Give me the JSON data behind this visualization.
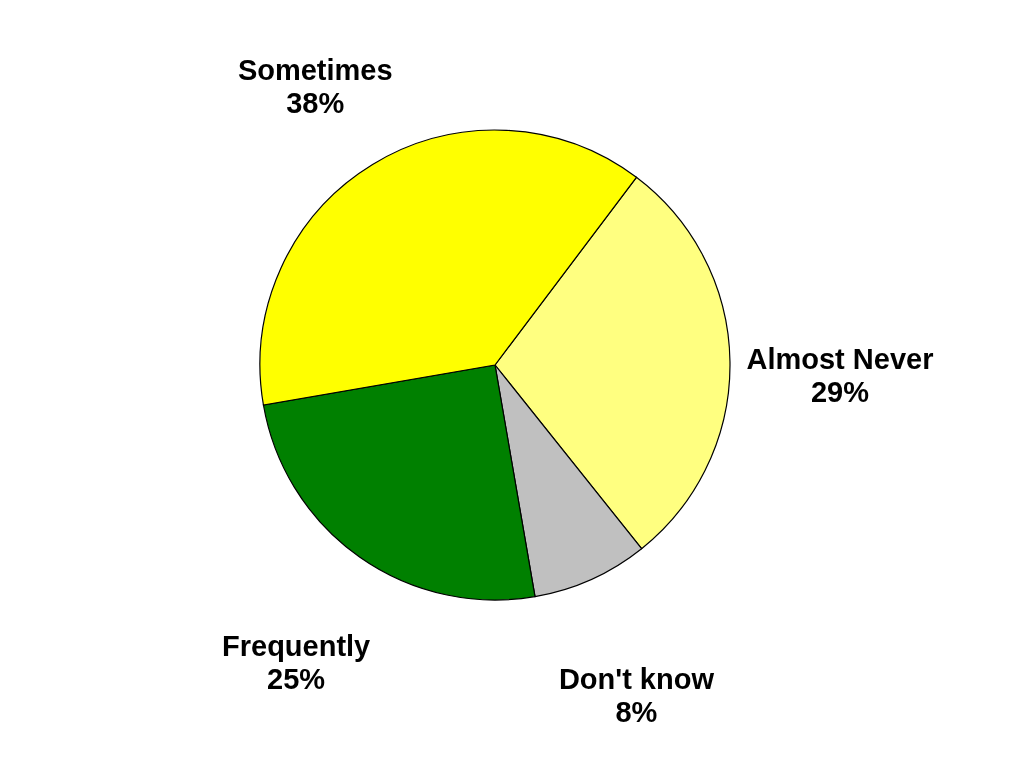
{
  "chart_data": {
    "type": "pie",
    "categories": [
      "Almost Never",
      "Don't know",
      "Frequently",
      "Sometimes"
    ],
    "values": [
      29,
      8,
      25,
      38
    ],
    "colors": [
      "#ffff80",
      "#c0c0c0",
      "#008000",
      "#ffff00"
    ],
    "value_labels": [
      "29%",
      "8%",
      "25%",
      "38%"
    ],
    "legend": false
  }
}
